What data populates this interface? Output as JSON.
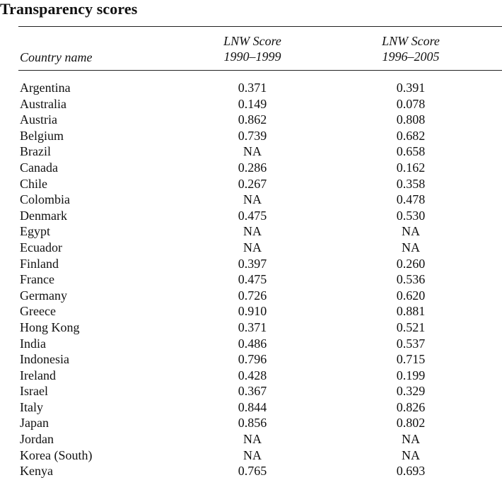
{
  "title": "Transparency scores",
  "headers": {
    "country": "Country name",
    "col1_line1": "LNW Score",
    "col1_line2": "1990–1999",
    "col2_line1": "LNW Score",
    "col2_line2": "1996–2005"
  },
  "rows": [
    {
      "country": "Argentina",
      "v1": "0.371",
      "v2": "0.391"
    },
    {
      "country": "Australia",
      "v1": "0.149",
      "v2": "0.078"
    },
    {
      "country": "Austria",
      "v1": "0.862",
      "v2": "0.808"
    },
    {
      "country": "Belgium",
      "v1": "0.739",
      "v2": "0.682"
    },
    {
      "country": "Brazil",
      "v1": "NA",
      "v2": "0.658"
    },
    {
      "country": "Canada",
      "v1": "0.286",
      "v2": "0.162"
    },
    {
      "country": "Chile",
      "v1": "0.267",
      "v2": "0.358"
    },
    {
      "country": "Colombia",
      "v1": "NA",
      "v2": "0.478"
    },
    {
      "country": "Denmark",
      "v1": "0.475",
      "v2": "0.530"
    },
    {
      "country": "Egypt",
      "v1": "NA",
      "v2": "NA"
    },
    {
      "country": "Ecuador",
      "v1": "NA",
      "v2": "NA"
    },
    {
      "country": "Finland",
      "v1": "0.397",
      "v2": "0.260"
    },
    {
      "country": "France",
      "v1": "0.475",
      "v2": "0.536"
    },
    {
      "country": "Germany",
      "v1": "0.726",
      "v2": "0.620"
    },
    {
      "country": "Greece",
      "v1": "0.910",
      "v2": "0.881"
    },
    {
      "country": "Hong Kong",
      "v1": "0.371",
      "v2": "0.521"
    },
    {
      "country": "India",
      "v1": "0.486",
      "v2": "0.537"
    },
    {
      "country": "Indonesia",
      "v1": "0.796",
      "v2": "0.715"
    },
    {
      "country": "Ireland",
      "v1": "0.428",
      "v2": "0.199"
    },
    {
      "country": "Israel",
      "v1": "0.367",
      "v2": "0.329"
    },
    {
      "country": "Italy",
      "v1": "0.844",
      "v2": "0.826"
    },
    {
      "country": "Japan",
      "v1": "0.856",
      "v2": "0.802"
    },
    {
      "country": "Jordan",
      "v1": "NA",
      "v2": "NA"
    },
    {
      "country": "Korea (South)",
      "v1": "NA",
      "v2": "NA"
    },
    {
      "country": "Kenya",
      "v1": "0.765",
      "v2": "0.693"
    }
  ]
}
